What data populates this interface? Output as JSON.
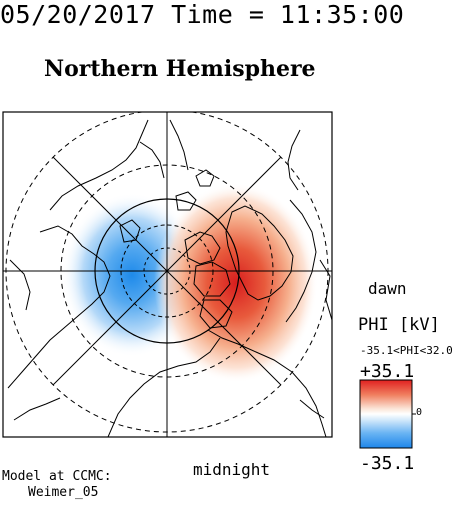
{
  "header": {
    "timestamp": "05/20/2017 Time = 11:35:00",
    "title": "Northern Hemisphere"
  },
  "plot": {
    "dawn_label": "dawn",
    "midnight_label": "midnight",
    "positive_cell_color": "#e03a2a",
    "negative_cell_color": "#2f8fe8"
  },
  "colorbar": {
    "title": "PHI [kV]",
    "range_text": "-35.1<PHI<32.0",
    "max_label": "+35.1",
    "min_label": "-35.1",
    "zero_label": "0",
    "colors": [
      "#e02020",
      "#f08060",
      "#fbd9c8",
      "#ffffff",
      "#cfe6fb",
      "#6ab4f3",
      "#1e86ea"
    ]
  },
  "footer": {
    "model_label": "Model at CCMC:",
    "model_name": "Weimer_05"
  }
}
